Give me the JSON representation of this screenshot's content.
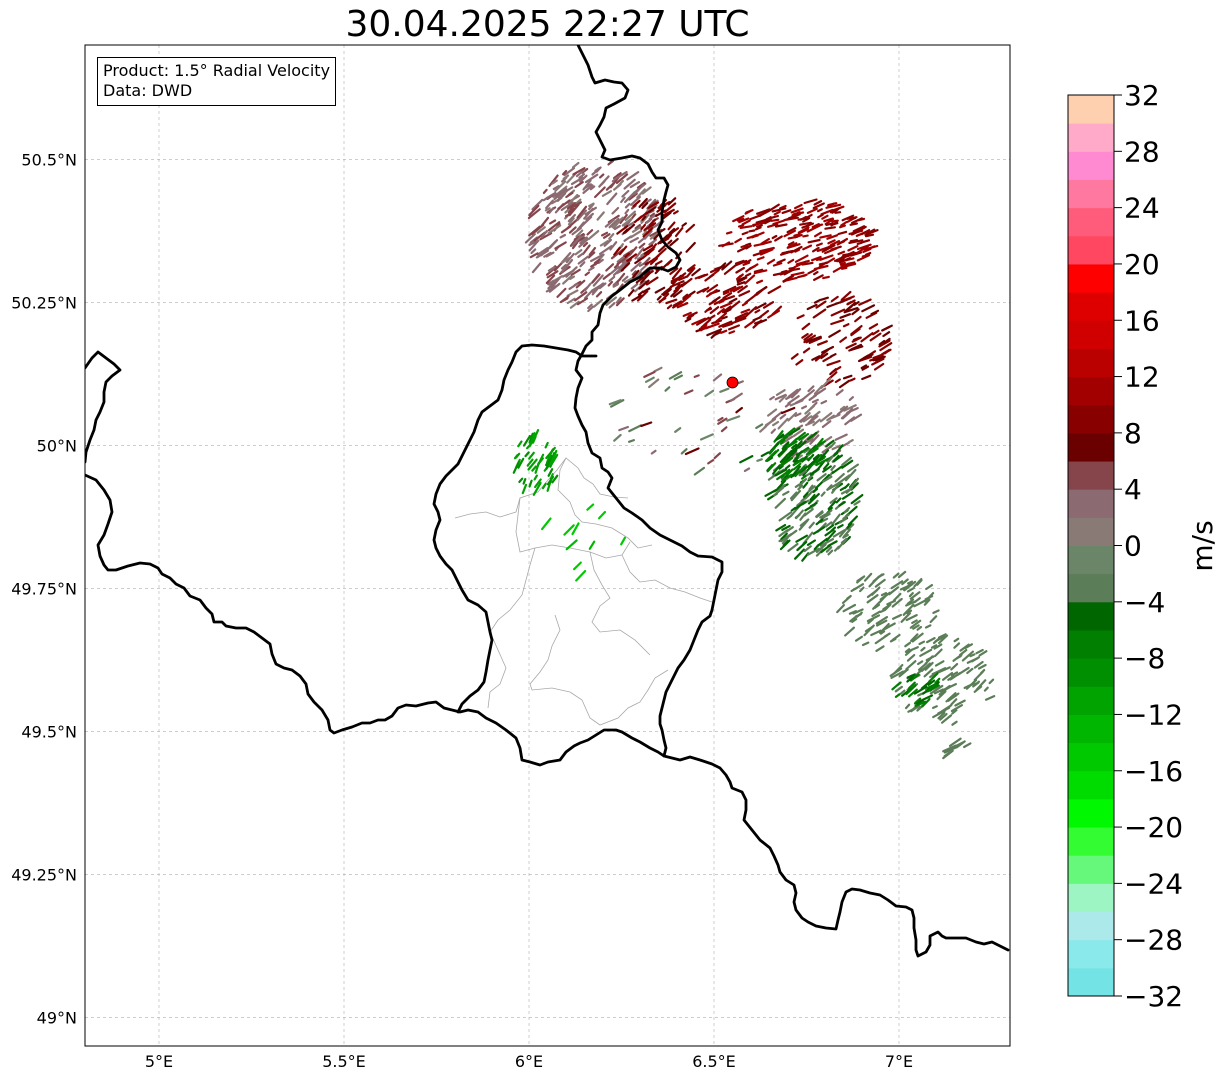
{
  "title": "30.04.2025 22:27 UTC",
  "info": {
    "product": "Product: 1.5° Radial Velocity",
    "data": "Data: DWD"
  },
  "map": {
    "lon_range": [
      4.8,
      7.3
    ],
    "lat_range": [
      48.95,
      50.7
    ],
    "lon_ticks": [
      {
        "value": 5.0,
        "label": "5°E"
      },
      {
        "value": 5.5,
        "label": "5.5°E"
      },
      {
        "value": 6.0,
        "label": "6°E"
      },
      {
        "value": 6.5,
        "label": "6.5°E"
      },
      {
        "value": 7.0,
        "label": "7°E"
      }
    ],
    "lat_ticks": [
      {
        "value": 49.0,
        "label": "49°N"
      },
      {
        "value": 49.25,
        "label": "49.25°N"
      },
      {
        "value": 49.5,
        "label": "49.5°N"
      },
      {
        "value": 49.75,
        "label": "49.75°N"
      },
      {
        "value": 50.0,
        "label": "50°N"
      },
      {
        "value": 50.25,
        "label": "50.25°N"
      },
      {
        "value": 50.5,
        "label": "50.5°N"
      }
    ],
    "grid": true,
    "radar_site": {
      "lon": 6.55,
      "lat": 50.11,
      "color": "#ff0000"
    }
  },
  "colorbar": {
    "label": "m/s",
    "vmin": -32,
    "vmax": 32,
    "ticks": [
      -32,
      -28,
      -24,
      -20,
      -16,
      -12,
      -8,
      -4,
      0,
      4,
      8,
      12,
      16,
      20,
      24,
      28,
      32
    ],
    "tick_labels": [
      "−32",
      "−28",
      "−24",
      "−20",
      "−16",
      "−12",
      "−8",
      "−4",
      "0",
      "4",
      "8",
      "12",
      "16",
      "20",
      "24",
      "28",
      "32"
    ],
    "colors": [
      "#74e3e5",
      "#8ae9ea",
      "#ace9eb",
      "#9ef5c4",
      "#66f87a",
      "#33fc33",
      "#00f800",
      "#00dc00",
      "#00c900",
      "#00b600",
      "#00a300",
      "#008f00",
      "#007f00",
      "#006600",
      "#5b7d57",
      "#6b8568",
      "#8a7a76",
      "#8b6a72",
      "#85454b",
      "#6a0000",
      "#890000",
      "#a20000",
      "#bb0000",
      "#d00000",
      "#de0000",
      "#ff0000",
      "#ff4761",
      "#ff5c7c",
      "#ff78a0",
      "#ff8ad2",
      "#ffaac8",
      "#ffd0b0"
    ]
  }
}
